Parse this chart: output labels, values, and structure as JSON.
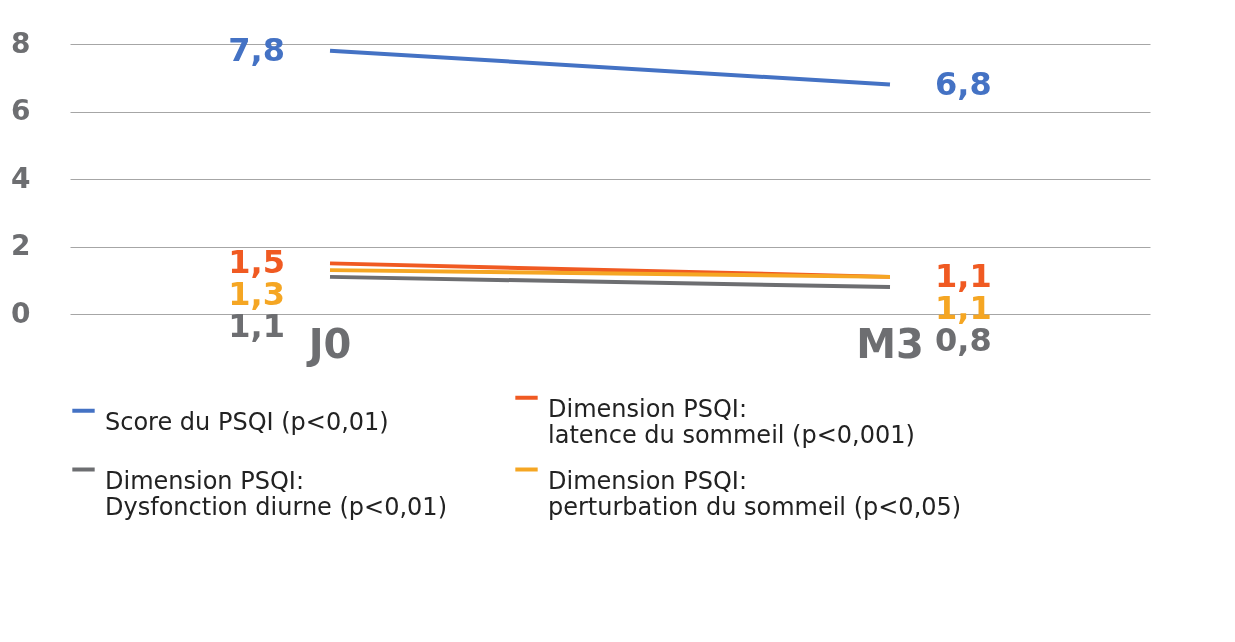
{
  "chart_data": {
    "type": "line",
    "categories": [
      "J0",
      "M3"
    ],
    "series": [
      {
        "name": "Score du PSQI (p<0,01)",
        "color": "#4472c4",
        "values": [
          7.8,
          6.8
        ],
        "value_labels": [
          "7,8",
          "6,8"
        ]
      },
      {
        "name": "Dimension PSQI: latence du sommeil (p<0,001)",
        "color": "#f05a22",
        "values": [
          1.5,
          1.1
        ],
        "value_labels": [
          "1,5",
          "1,1"
        ]
      },
      {
        "name": "Dimension PSQI: Dysfonction diurne (p<0,01)",
        "color": "#6d6e71",
        "values": [
          1.1,
          0.8
        ],
        "value_labels": [
          "1,1",
          "0,8"
        ]
      },
      {
        "name": "Dimension PSQI: perturbation du sommeil (p<0,05)",
        "color": "#f5a623",
        "values": [
          1.3,
          1.1
        ],
        "value_labels": [
          "1,3",
          "1,1"
        ]
      }
    ],
    "ylim": [
      0,
      8
    ],
    "yticks": [
      0,
      2,
      4,
      6,
      8
    ],
    "grid": "y",
    "legend": "bottom",
    "marker": "none",
    "line_style": "solid"
  }
}
